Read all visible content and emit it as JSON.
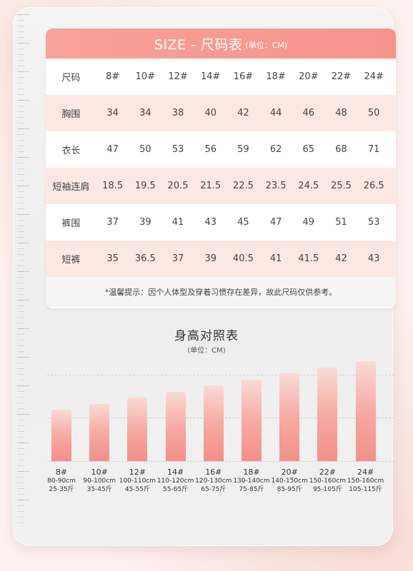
{
  "size_table": {
    "title": "SIZE - 尺码表",
    "unit": "(单位：CM)",
    "header_label": "尺码",
    "sizes": [
      "8#",
      "10#",
      "12#",
      "14#",
      "16#",
      "18#",
      "20#",
      "22#",
      "24#"
    ],
    "rows": [
      {
        "label": "胸围",
        "values": [
          "34",
          "34",
          "38",
          "40",
          "42",
          "44",
          "46",
          "48",
          "50"
        ]
      },
      {
        "label": "衣长",
        "values": [
          "47",
          "50",
          "53",
          "56",
          "59",
          "62",
          "65",
          "68",
          "71"
        ]
      },
      {
        "label": "短袖连肩",
        "values": [
          "18.5",
          "19.5",
          "20.5",
          "21.5",
          "22.5",
          "23.5",
          "24.5",
          "25.5",
          "26.5"
        ]
      },
      {
        "label": "裤围",
        "values": [
          "37",
          "39",
          "41",
          "43",
          "45",
          "47",
          "49",
          "51",
          "53"
        ]
      },
      {
        "label": "短裤",
        "values": [
          "35",
          "36.5",
          "37",
          "39",
          "40.5",
          "41",
          "41.5",
          "42",
          "43"
        ]
      }
    ],
    "tip": "*温馨提示：因个人体型及穿着习惯存在差异，故此尺码仅供参考。"
  },
  "height_chart": {
    "title": "身高对照表",
    "unit": "(单位：CM)"
  },
  "chart_data": {
    "type": "bar",
    "title": "身高对照表",
    "categories": [
      "8#",
      "10#",
      "12#",
      "14#",
      "16#",
      "18#",
      "20#",
      "22#",
      "24#"
    ],
    "heights": [
      "80-90cm",
      "90-100cm",
      "100-110cm",
      "110-120cm",
      "120-130cm",
      "130-140cm",
      "140-150cm",
      "150-160cm",
      "150-160cm"
    ],
    "weights": [
      "25-35斤",
      "35-45斤",
      "45-55斤",
      "55-65斤",
      "65-75斤",
      "75-85斤",
      "85-95斤",
      "95-105斤",
      "105-115斤"
    ],
    "values": [
      1,
      2,
      3,
      4,
      5,
      6,
      7,
      8,
      9
    ],
    "grid": true,
    "colors": {
      "bar_top": "#fadad5",
      "bar_bottom": "#f29088"
    }
  },
  "colors": {
    "header": "#f69a92",
    "row_pink": "#fde7e3",
    "background": "#fdf1ef"
  }
}
